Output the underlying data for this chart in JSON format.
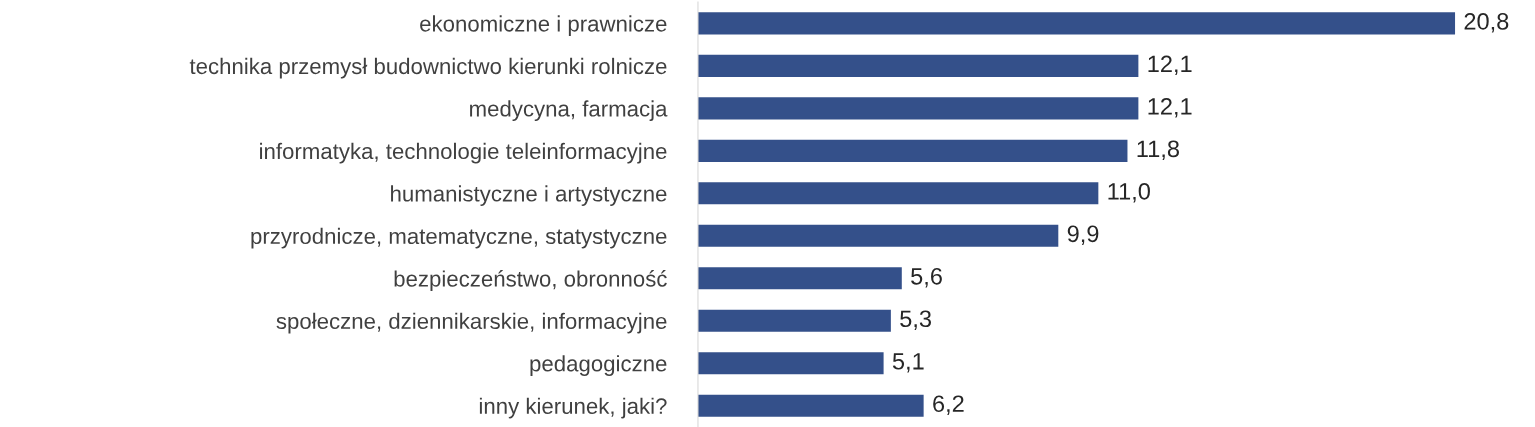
{
  "chart_data": {
    "type": "bar",
    "orientation": "horizontal",
    "categories": [
      "ekonomiczne i prawnicze",
      "technika przemysł budownictwo kierunki rolnicze",
      "medycyna, farmacja",
      "informatyka, technologie teleinformacyjne",
      "humanistyczne i artystyczne",
      "przyrodnicze, matematyczne, statystyczne",
      "bezpieczeństwo, obronność",
      "społeczne, dziennikarskie, informacyjne",
      "pedagogiczne",
      "inny kierunek, jaki?"
    ],
    "values": [
      20.8,
      12.1,
      12.1,
      11.8,
      11.0,
      9.9,
      5.6,
      5.3,
      5.1,
      6.2
    ],
    "value_labels": [
      "20,8",
      "12,1",
      "12,1",
      "11,8",
      "11,0",
      "9,9",
      "5,6",
      "5,3",
      "5,1",
      "6,2"
    ],
    "color": "#34508a",
    "grid": false,
    "legend": false
  }
}
